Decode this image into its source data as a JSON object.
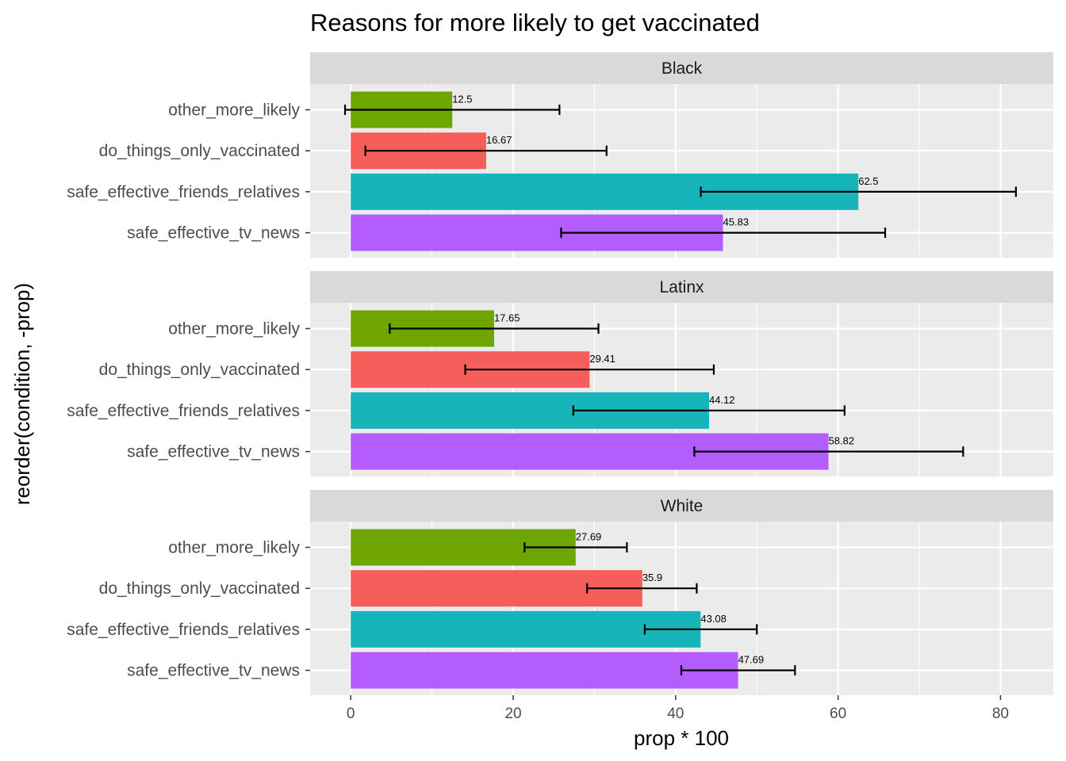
{
  "chart_data": {
    "type": "bar",
    "orientation": "horizontal",
    "title": "Reasons for more likely to get vaccinated",
    "xlabel": "prop * 100",
    "ylabel": "reorder(condition, -prop)",
    "xlim": [
      -5,
      86.5
    ],
    "x_ticks": [
      0,
      20,
      40,
      60,
      80
    ],
    "grid": true,
    "legend": "none",
    "categories": [
      "other_more_likely",
      "do_things_only_vaccinated",
      "safe_effective_friends_relatives",
      "safe_effective_tv_news"
    ],
    "colors": {
      "other_more_likely": "#6fa500",
      "do_things_only_vaccinated": "#f55e5b",
      "safe_effective_friends_relatives": "#17b5ba",
      "safe_effective_tv_news": "#b45dff"
    },
    "panels": [
      {
        "label": "Black",
        "bars": [
          {
            "category": "other_more_likely",
            "value": 12.5,
            "label": "12.5",
            "err_low": -0.7,
            "err_high": 25.7
          },
          {
            "category": "do_things_only_vaccinated",
            "value": 16.67,
            "label": "16.67",
            "err_low": 1.8,
            "err_high": 31.5
          },
          {
            "category": "safe_effective_friends_relatives",
            "value": 62.5,
            "label": "62.5",
            "err_low": 43.1,
            "err_high": 81.9
          },
          {
            "category": "safe_effective_tv_news",
            "value": 45.83,
            "label": "45.83",
            "err_low": 25.9,
            "err_high": 65.8
          }
        ]
      },
      {
        "label": "Latinx",
        "bars": [
          {
            "category": "other_more_likely",
            "value": 17.65,
            "label": "17.65",
            "err_low": 4.8,
            "err_high": 30.5
          },
          {
            "category": "do_things_only_vaccinated",
            "value": 29.41,
            "label": "29.41",
            "err_low": 14.1,
            "err_high": 44.7
          },
          {
            "category": "safe_effective_friends_relatives",
            "value": 44.12,
            "label": "44.12",
            "err_low": 27.4,
            "err_high": 60.8
          },
          {
            "category": "safe_effective_tv_news",
            "value": 58.82,
            "label": "58.82",
            "err_low": 42.3,
            "err_high": 75.4
          }
        ]
      },
      {
        "label": "White",
        "bars": [
          {
            "category": "other_more_likely",
            "value": 27.69,
            "label": "27.69",
            "err_low": 21.4,
            "err_high": 34.0
          },
          {
            "category": "do_things_only_vaccinated",
            "value": 35.9,
            "label": "35.9",
            "err_low": 29.1,
            "err_high": 42.6
          },
          {
            "category": "safe_effective_friends_relatives",
            "value": 43.08,
            "label": "43.08",
            "err_low": 36.2,
            "err_high": 50.0
          },
          {
            "category": "safe_effective_tv_news",
            "value": 47.69,
            "label": "47.69",
            "err_low": 40.7,
            "err_high": 54.7
          }
        ]
      }
    ]
  }
}
